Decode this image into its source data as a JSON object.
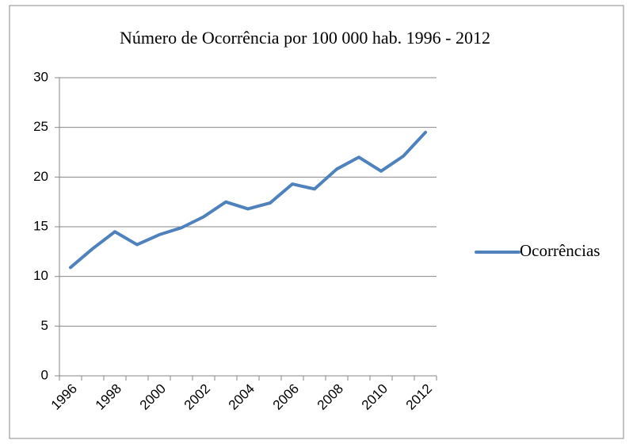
{
  "chart_data": {
    "type": "line",
    "title": "Número de Ocorrência por 100 000 hab. 1996 - 2012",
    "categories": [
      "1996",
      null,
      "1998",
      null,
      "2000",
      null,
      "2002",
      null,
      "2004",
      null,
      "2006",
      null,
      "2008",
      null,
      "2010",
      null,
      "2012"
    ],
    "series": [
      {
        "name": "Ocorrências",
        "color": "#4f81bd",
        "values": [
          10.9,
          12.8,
          14.5,
          13.2,
          14.2,
          14.9,
          16.0,
          17.5,
          16.8,
          17.4,
          19.3,
          18.8,
          20.8,
          22.0,
          20.6,
          22.1,
          24.5
        ]
      }
    ],
    "ylim": [
      0,
      30
    ],
    "yticks": [
      0,
      5,
      10,
      15,
      20,
      25,
      30
    ],
    "grid": true,
    "legend": "right"
  }
}
